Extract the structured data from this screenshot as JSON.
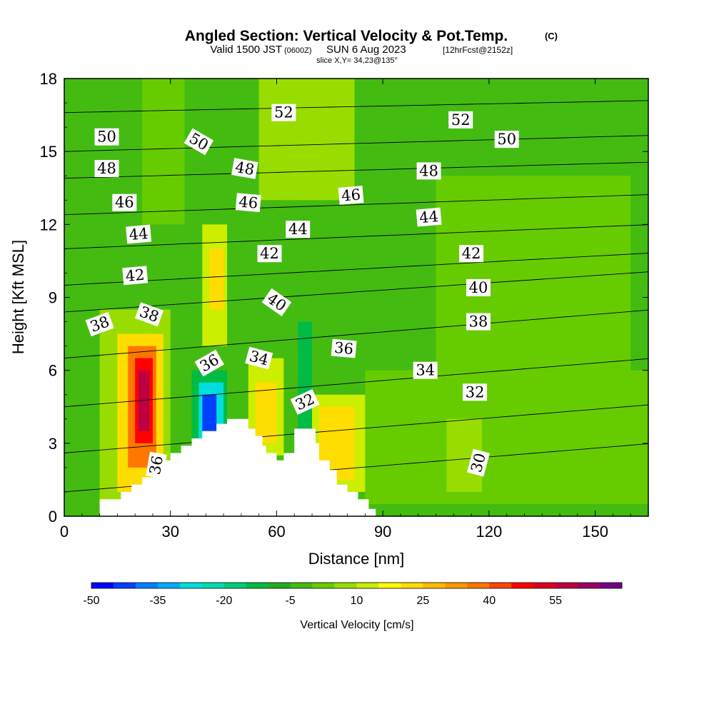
{
  "chart_data": {
    "type": "heatmap",
    "title": {
      "main": "Angled Section: Vertical Velocity & Pot.Temp.",
      "main_tag": "(C)",
      "valid_prefix": "Valid 1500 JST",
      "valid_zulu": "(0600Z)",
      "valid_date": "SUN 6 Aug 2023",
      "forecast": "[12hrFcst@2152z]",
      "slice": "slice X,Y= 34,23@135°"
    },
    "xlabel": "Distance [nm]",
    "ylabel": "Height [Kft MSL]",
    "xlim": [
      0,
      165
    ],
    "ylim": [
      0,
      18
    ],
    "x_ticks": [
      "0",
      "30",
      "60",
      "90",
      "120",
      "150"
    ],
    "y_ticks": [
      "0",
      "3",
      "6",
      "9",
      "12",
      "15",
      "18"
    ],
    "colorbar": {
      "label": "Vertical Velocity [cm/s]",
      "tick_labels": [
        "-50",
        "-35",
        "-20",
        "-5",
        "10",
        "25",
        "40",
        "55"
      ],
      "levels_start": -50,
      "levels_step": 5,
      "colors": [
        "#0000ff",
        "#0040ff",
        "#0080ff",
        "#00aaff",
        "#00dddd",
        "#00ddaa",
        "#00cc77",
        "#00bb44",
        "#22aa22",
        "#44bb11",
        "#66cc00",
        "#99dd00",
        "#ccee00",
        "#ffff00",
        "#ffdd00",
        "#ffbb00",
        "#ff9900",
        "#ff7700",
        "#ff4400",
        "#ff0000",
        "#dd0022",
        "#bb0044",
        "#990066",
        "#770088"
      ]
    },
    "background_value": -2,
    "cells": [
      {
        "x0": 10,
        "x1": 30,
        "y0": 0.5,
        "y1": 8.5,
        "v": 5
      },
      {
        "x0": 15,
        "x1": 28,
        "y0": 1,
        "y1": 7.5,
        "v": 20
      },
      {
        "x0": 18,
        "x1": 26,
        "y0": 2,
        "y1": 7,
        "v": 35
      },
      {
        "x0": 20,
        "x1": 25,
        "y0": 3,
        "y1": 6.5,
        "v": 45
      },
      {
        "x0": 21,
        "x1": 24,
        "y0": 3.5,
        "y1": 6,
        "v": 55
      },
      {
        "x0": 36,
        "x1": 46,
        "y0": 3,
        "y1": 6,
        "v": -12
      },
      {
        "x0": 38,
        "x1": 45,
        "y0": 3,
        "y1": 5.5,
        "v": -28
      },
      {
        "x0": 39,
        "x1": 43,
        "y0": 3.5,
        "y1": 5,
        "v": -42
      },
      {
        "x0": 39,
        "x1": 46,
        "y0": 7,
        "y1": 12,
        "v": 12
      },
      {
        "x0": 41,
        "x1": 45,
        "y0": 8.5,
        "y1": 11,
        "v": 22
      },
      {
        "x0": 52,
        "x1": 62,
        "y0": 2.5,
        "y1": 6.5,
        "v": 12
      },
      {
        "x0": 54,
        "x1": 60,
        "y0": 3,
        "y1": 5.5,
        "v": 22
      },
      {
        "x0": 66,
        "x1": 70,
        "y0": 3.5,
        "y1": 8,
        "v": -15
      },
      {
        "x0": 70,
        "x1": 86,
        "y0": 1,
        "y1": 5,
        "v": 12
      },
      {
        "x0": 72,
        "x1": 82,
        "y0": 1.5,
        "y1": 4.5,
        "v": 22
      },
      {
        "x0": 85,
        "x1": 165,
        "y0": 0.5,
        "y1": 6,
        "v": 3
      },
      {
        "x0": 105,
        "x1": 160,
        "y0": 6,
        "y1": 14,
        "v": 3
      },
      {
        "x0": 22,
        "x1": 34,
        "y0": 12,
        "y1": 18,
        "v": 3
      },
      {
        "x0": 55,
        "x1": 82,
        "y0": 13,
        "y1": 18,
        "v": 5
      },
      {
        "x0": 108,
        "x1": 118,
        "y0": 1,
        "y1": 4,
        "v": 8
      }
    ],
    "terrain": [
      [
        10,
        0
      ],
      [
        10,
        0.7
      ],
      [
        16,
        0.7
      ],
      [
        16,
        1.0
      ],
      [
        19,
        1.0
      ],
      [
        19,
        1.3
      ],
      [
        22,
        1.3
      ],
      [
        22,
        1.6
      ],
      [
        25,
        1.6
      ],
      [
        25,
        2.0
      ],
      [
        27,
        2.0
      ],
      [
        27,
        2.3
      ],
      [
        30,
        2.3
      ],
      [
        30,
        2.6
      ],
      [
        33,
        2.6
      ],
      [
        33,
        2.9
      ],
      [
        36,
        2.9
      ],
      [
        36,
        3.2
      ],
      [
        39,
        3.2
      ],
      [
        39,
        3.5
      ],
      [
        43,
        3.5
      ],
      [
        43,
        3.8
      ],
      [
        46,
        3.8
      ],
      [
        46,
        4.0
      ],
      [
        52,
        4.0
      ],
      [
        52,
        3.6
      ],
      [
        54,
        3.6
      ],
      [
        54,
        3.3
      ],
      [
        56,
        3.3
      ],
      [
        56,
        2.9
      ],
      [
        57,
        2.9
      ],
      [
        57,
        2.6
      ],
      [
        60,
        2.6
      ],
      [
        60,
        2.3
      ],
      [
        62,
        2.3
      ],
      [
        62,
        2.6
      ],
      [
        65,
        2.6
      ],
      [
        65,
        3.6
      ],
      [
        71,
        3.6
      ],
      [
        71,
        3.0
      ],
      [
        72,
        3.0
      ],
      [
        72,
        2.3
      ],
      [
        75,
        2.3
      ],
      [
        75,
        1.9
      ],
      [
        77,
        1.9
      ],
      [
        77,
        1.3
      ],
      [
        80,
        1.3
      ],
      [
        80,
        1.0
      ],
      [
        83,
        1.0
      ],
      [
        83,
        0.7
      ],
      [
        86,
        0.7
      ],
      [
        86,
        0.3
      ],
      [
        88,
        0.3
      ],
      [
        88,
        0
      ]
    ],
    "isentropes": [
      {
        "value": 30,
        "y_start": 0,
        "slope": 0,
        "dips": []
      },
      {
        "value": 32,
        "y_start": 1,
        "slope": 0.012,
        "dips": []
      },
      {
        "value": 34,
        "y_start": 2.6,
        "slope": 0.012,
        "dips": []
      },
      {
        "value": 36,
        "y_start": 4.5,
        "slope": 0.012,
        "dips": []
      },
      {
        "value": 38,
        "y_start": 6.5,
        "slope": 0.012,
        "dips": []
      },
      {
        "value": 40,
        "y_start": 8.4,
        "slope": 0.01,
        "dips": []
      },
      {
        "value": 42,
        "y_start": 9.5,
        "slope": 0.008,
        "dips": []
      },
      {
        "value": 44,
        "y_start": 11.0,
        "slope": 0.006,
        "dips": []
      },
      {
        "value": 46,
        "y_start": 12.4,
        "slope": 0.005,
        "dips": []
      },
      {
        "value": 48,
        "y_start": 13.9,
        "slope": 0.004,
        "dips": []
      },
      {
        "value": 50,
        "y_start": 15.0,
        "slope": 0.004,
        "dips": []
      },
      {
        "value": 52,
        "y_start": 16.6,
        "slope": 0.003,
        "dips": []
      }
    ],
    "contour_labels": [
      {
        "text": "52",
        "x": 62,
        "y": 16.6,
        "angle": 0
      },
      {
        "text": "52",
        "x": 112,
        "y": 16.3,
        "angle": 0
      },
      {
        "text": "50",
        "x": 12,
        "y": 15.6,
        "angle": 0
      },
      {
        "text": "50",
        "x": 38,
        "y": 15.4,
        "angle": 30
      },
      {
        "text": "50",
        "x": 125,
        "y": 15.5,
        "angle": 0
      },
      {
        "text": "48",
        "x": 12,
        "y": 14.3,
        "angle": 0
      },
      {
        "text": "48",
        "x": 51,
        "y": 14.3,
        "angle": 10
      },
      {
        "text": "48",
        "x": 103,
        "y": 14.2,
        "angle": 0
      },
      {
        "text": "46",
        "x": 17,
        "y": 12.9,
        "angle": 0
      },
      {
        "text": "46",
        "x": 52,
        "y": 12.9,
        "angle": 5
      },
      {
        "text": "46",
        "x": 81,
        "y": 13.2,
        "angle": -5
      },
      {
        "text": "44",
        "x": 21,
        "y": 11.6,
        "angle": -5
      },
      {
        "text": "44",
        "x": 66,
        "y": 11.8,
        "angle": 0
      },
      {
        "text": "44",
        "x": 103,
        "y": 12.3,
        "angle": -5
      },
      {
        "text": "42",
        "x": 20,
        "y": 9.9,
        "angle": -5
      },
      {
        "text": "42",
        "x": 58,
        "y": 10.8,
        "angle": 0
      },
      {
        "text": "42",
        "x": 115,
        "y": 10.8,
        "angle": 0
      },
      {
        "text": "40",
        "x": 60,
        "y": 8.8,
        "angle": 35
      },
      {
        "text": "40",
        "x": 117,
        "y": 9.4,
        "angle": 0
      },
      {
        "text": "38",
        "x": 10,
        "y": 7.9,
        "angle": -20
      },
      {
        "text": "38",
        "x": 24,
        "y": 8.3,
        "angle": 20
      },
      {
        "text": "38",
        "x": 117,
        "y": 8.0,
        "angle": 0
      },
      {
        "text": "36",
        "x": 79,
        "y": 6.9,
        "angle": 5
      },
      {
        "text": "36",
        "x": 41,
        "y": 6.3,
        "angle": -30
      },
      {
        "text": "36",
        "x": 26,
        "y": 2.1,
        "angle": -80
      },
      {
        "text": "34",
        "x": 55,
        "y": 6.5,
        "angle": 15
      },
      {
        "text": "34",
        "x": 102,
        "y": 6.0,
        "angle": 0
      },
      {
        "text": "32",
        "x": 68,
        "y": 4.7,
        "angle": -25
      },
      {
        "text": "32",
        "x": 116,
        "y": 5.1,
        "angle": 0
      },
      {
        "text": "30",
        "x": 117,
        "y": 2.2,
        "angle": -75
      }
    ]
  }
}
